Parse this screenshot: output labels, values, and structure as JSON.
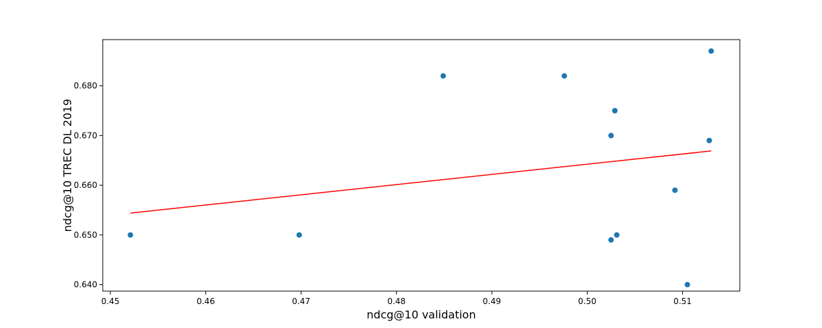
{
  "chart_data": {
    "type": "scatter",
    "xlabel": "ndcg@10 validation",
    "ylabel": "ndcg@10 TREC DL 2019",
    "xlim": [
      0.4492,
      0.516
    ],
    "ylim": [
      0.6387,
      0.6893
    ],
    "x_ticks": [
      0.45,
      0.46,
      0.47,
      0.48,
      0.49,
      0.5,
      0.51
    ],
    "x_tick_labels": [
      "0.45",
      "0.46",
      "0.47",
      "0.48",
      "0.49",
      "0.50",
      "0.51"
    ],
    "y_ticks": [
      0.64,
      0.65,
      0.66,
      0.67,
      0.68
    ],
    "y_tick_labels": [
      "0.640",
      "0.650",
      "0.660",
      "0.670",
      "0.680"
    ],
    "grid": false,
    "point_color": "#1f77b4",
    "line_color": "#ff0000",
    "points": [
      {
        "x": 0.4521,
        "y": 0.65
      },
      {
        "x": 0.4698,
        "y": 0.65
      },
      {
        "x": 0.4849,
        "y": 0.682
      },
      {
        "x": 0.4976,
        "y": 0.682
      },
      {
        "x": 0.5025,
        "y": 0.67
      },
      {
        "x": 0.5025,
        "y": 0.649
      },
      {
        "x": 0.5029,
        "y": 0.675
      },
      {
        "x": 0.5031,
        "y": 0.65
      },
      {
        "x": 0.5092,
        "y": 0.659
      },
      {
        "x": 0.5105,
        "y": 0.64
      },
      {
        "x": 0.5128,
        "y": 0.669
      },
      {
        "x": 0.513,
        "y": 0.687
      }
    ],
    "trend_line": {
      "x": [
        0.4521,
        0.513
      ],
      "y": [
        0.6544,
        0.6669
      ]
    }
  }
}
